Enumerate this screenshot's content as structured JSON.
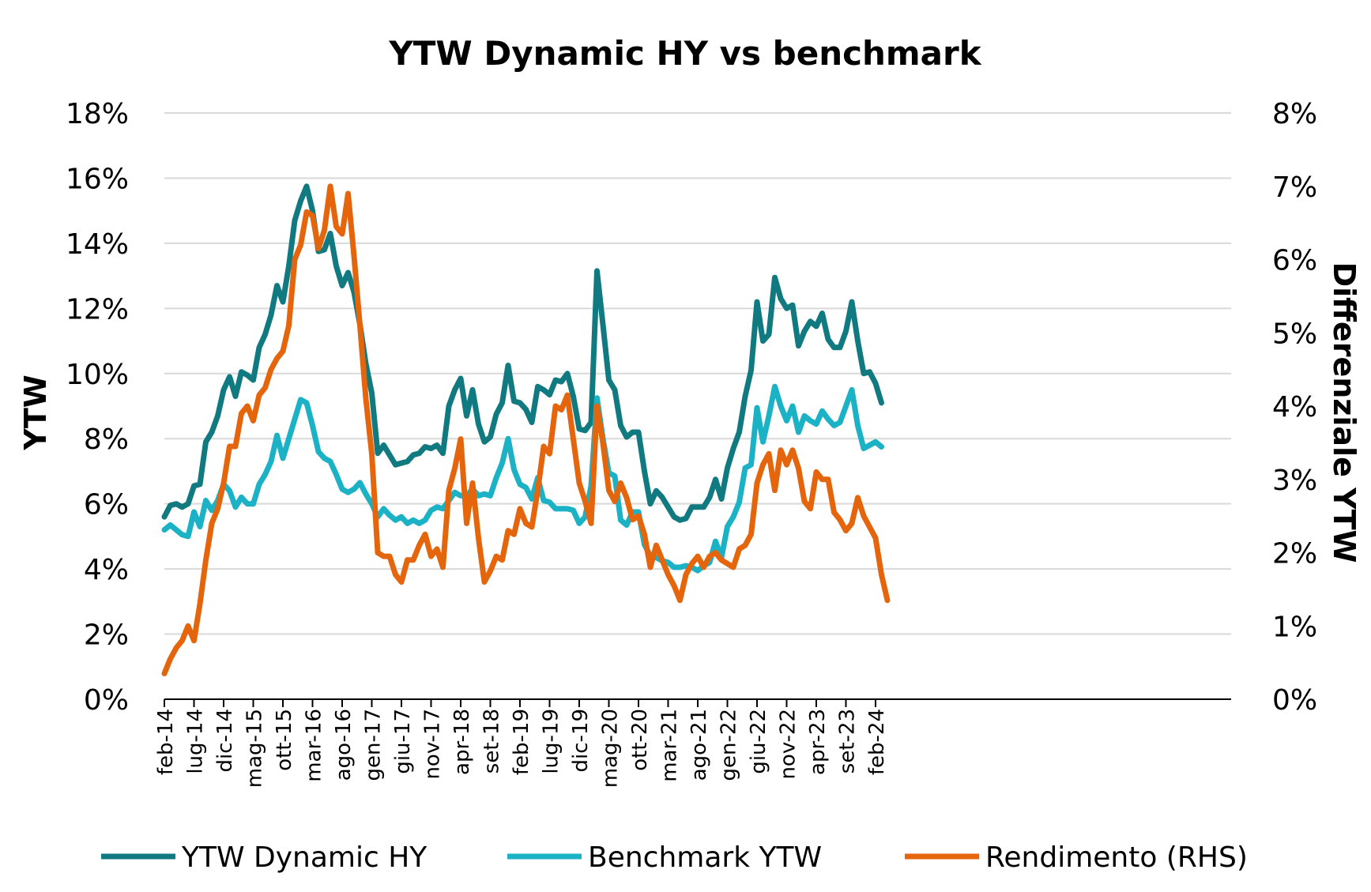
{
  "chart_data": {
    "type": "line",
    "title": "YTW Dynamic HY vs benchmark",
    "ylabel_left": "YTW",
    "ylabel_right": "Differenziale YTW",
    "left_axis": {
      "range": [
        0,
        18
      ],
      "step": 2,
      "unit": "%",
      "ticks": [
        "0%",
        "2%",
        "4%",
        "6%",
        "8%",
        "10%",
        "12%",
        "14%",
        "16%",
        "18%"
      ]
    },
    "right_axis": {
      "range": [
        0,
        8
      ],
      "step": 1,
      "unit": "%",
      "ticks": [
        "0%",
        "1%",
        "2%",
        "3%",
        "4%",
        "5%",
        "6%",
        "7%",
        "8%"
      ]
    },
    "grid": true,
    "legend_position": "bottom",
    "x_tick_labels": [
      "feb-14",
      "lug-14",
      "dic-14",
      "mag-15",
      "ott-15",
      "mar-16",
      "ago-16",
      "gen-17",
      "giu-17",
      "nov-17",
      "apr-18",
      "set-18",
      "feb-19",
      "lug-19",
      "dic-19",
      "mag-20",
      "ott-20",
      "mar-21",
      "ago-21",
      "gen-22",
      "giu-22",
      "nov-22",
      "apr-23",
      "set-23",
      "feb-24"
    ],
    "x_start": "feb-14",
    "x_end": "mar-24",
    "series": [
      {
        "name": "YTW Dynamic HY",
        "axis": "left",
        "color": "#117a80",
        "values": [
          5.6,
          5.95,
          6.0,
          5.9,
          6.0,
          6.55,
          6.6,
          7.9,
          8.2,
          8.7,
          9.5,
          9.9,
          9.3,
          10.05,
          9.95,
          9.8,
          10.8,
          11.2,
          11.8,
          12.7,
          12.2,
          13.3,
          14.7,
          15.3,
          15.75,
          15.0,
          13.75,
          13.8,
          14.3,
          13.3,
          12.7,
          13.1,
          12.5,
          11.5,
          10.3,
          9.4,
          7.55,
          7.8,
          7.5,
          7.2,
          7.25,
          7.3,
          7.5,
          7.55,
          7.75,
          7.7,
          7.8,
          7.55,
          9.0,
          9.5,
          9.85,
          8.7,
          9.5,
          8.45,
          7.9,
          8.05,
          8.75,
          9.1,
          10.25,
          9.15,
          9.1,
          8.9,
          8.5,
          9.6,
          9.5,
          9.35,
          9.8,
          9.75,
          10.0,
          9.3,
          8.3,
          8.25,
          8.5,
          13.15,
          11.5,
          9.8,
          9.5,
          8.4,
          8.05,
          8.2,
          8.2,
          7.0,
          6.0,
          6.4,
          6.2,
          5.9,
          5.6,
          5.5,
          5.55,
          5.9,
          5.9,
          5.9,
          6.2,
          6.75,
          6.15,
          7.1,
          7.7,
          8.2,
          9.3,
          10.1,
          12.2,
          11.0,
          11.2,
          12.95,
          12.3,
          12.0,
          12.1,
          10.85,
          11.3,
          11.6,
          11.45,
          11.85,
          11.05,
          10.8,
          10.8,
          11.3,
          12.2,
          11.0,
          10.0,
          10.05,
          9.7,
          9.1
        ]
      },
      {
        "name": "Benchmark YTW",
        "axis": "left",
        "color": "#1bb2c6",
        "values": [
          5.2,
          5.35,
          5.2,
          5.05,
          5.0,
          5.75,
          5.3,
          6.1,
          5.8,
          6.1,
          6.6,
          6.4,
          5.9,
          6.2,
          6.0,
          6.0,
          6.6,
          6.9,
          7.3,
          8.1,
          7.4,
          8.0,
          8.6,
          9.2,
          9.1,
          8.4,
          7.6,
          7.4,
          7.3,
          6.9,
          6.45,
          6.35,
          6.45,
          6.65,
          6.3,
          6.0,
          5.6,
          5.85,
          5.65,
          5.5,
          5.6,
          5.4,
          5.5,
          5.4,
          5.5,
          5.8,
          5.9,
          5.85,
          6.1,
          6.35,
          6.25,
          6.25,
          6.45,
          6.25,
          6.3,
          6.25,
          6.8,
          7.25,
          8.0,
          7.05,
          6.6,
          6.5,
          6.15,
          6.8,
          6.1,
          6.05,
          5.85,
          5.85,
          5.85,
          5.8,
          5.4,
          5.6,
          6.55,
          9.25,
          8.0,
          6.95,
          6.85,
          5.5,
          5.35,
          5.75,
          5.75,
          4.75,
          4.4,
          4.35,
          4.25,
          4.2,
          4.05,
          4.05,
          4.1,
          4.05,
          3.95,
          4.1,
          4.2,
          4.85,
          4.35,
          5.3,
          5.6,
          6.05,
          7.1,
          7.2,
          8.95,
          7.9,
          8.7,
          9.6,
          9.0,
          8.55,
          9.0,
          8.2,
          8.7,
          8.55,
          8.45,
          8.85,
          8.6,
          8.4,
          8.5,
          9.0,
          9.5,
          8.4,
          7.7,
          7.8,
          7.9,
          7.75
        ]
      },
      {
        "name": "Rendimento (RHS)",
        "axis": "right",
        "color": "#e5650d",
        "values": [
          0.35,
          0.55,
          0.7,
          0.8,
          1.0,
          0.8,
          1.3,
          1.9,
          2.4,
          2.6,
          2.95,
          3.45,
          3.45,
          3.9,
          4.0,
          3.8,
          4.15,
          4.25,
          4.5,
          4.65,
          4.75,
          5.1,
          6.0,
          6.2,
          6.65,
          6.6,
          6.15,
          6.4,
          7.0,
          6.45,
          6.35,
          6.9,
          6.05,
          5.1,
          4.1,
          3.35,
          2.0,
          1.95,
          1.95,
          1.7,
          1.6,
          1.9,
          1.9,
          2.1,
          2.25,
          1.95,
          2.05,
          1.8,
          2.85,
          3.15,
          3.55,
          2.4,
          2.95,
          2.2,
          1.6,
          1.75,
          1.95,
          1.9,
          2.3,
          2.25,
          2.6,
          2.4,
          2.35,
          2.85,
          3.45,
          3.35,
          4.0,
          3.95,
          4.15,
          3.55,
          2.95,
          2.7,
          2.4,
          4.0,
          3.5,
          2.85,
          2.7,
          2.95,
          2.75,
          2.45,
          2.5,
          2.25,
          1.8,
          2.1,
          1.9,
          1.7,
          1.55,
          1.35,
          1.7,
          1.85,
          1.95,
          1.8,
          1.95,
          2.0,
          1.9,
          1.85,
          1.8,
          2.05,
          2.1,
          2.25,
          2.95,
          3.2,
          3.35,
          2.85,
          3.4,
          3.2,
          3.4,
          3.15,
          2.7,
          2.6,
          3.1,
          3.0,
          3.0,
          2.55,
          2.45,
          2.3,
          2.4,
          2.75,
          2.5,
          2.35,
          2.2,
          1.7,
          1.35
        ]
      }
    ]
  }
}
